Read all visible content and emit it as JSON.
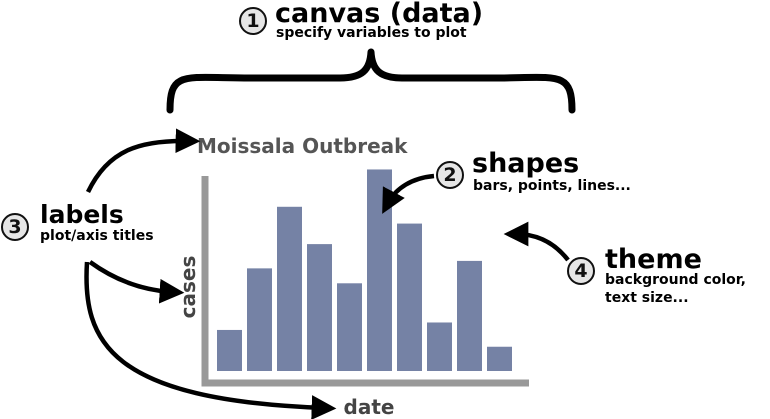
{
  "canvas": {
    "number": "1",
    "title": "canvas (data)",
    "subtitle": "specify variables to plot"
  },
  "shapes": {
    "number": "2",
    "title": "shapes",
    "subtitle": "bars, points, lines..."
  },
  "labels": {
    "number": "3",
    "title": "labels",
    "subtitle": "plot/axis titles"
  },
  "theme": {
    "number": "4",
    "title": "theme",
    "subtitle_lines": [
      "background color,",
      "text size..."
    ]
  },
  "chart_data": {
    "type": "bar",
    "title": "Moissala Outbreak",
    "xlabel": "date",
    "ylabel": "cases",
    "values": [
      1.1,
      2.75,
      4.4,
      3.4,
      2.35,
      5.4,
      3.95,
      1.3,
      2.95,
      0.65
    ],
    "ylim": [
      0,
      5.6
    ],
    "bar_color": "#7582a5",
    "axis_color": "#999999"
  },
  "colors": {
    "title_gray": "#555555",
    "ylabel_gray": "#444444",
    "arrow": "#000000"
  }
}
